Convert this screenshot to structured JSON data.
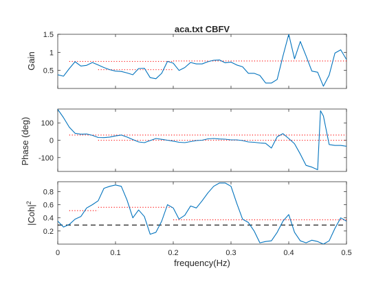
{
  "figure": {
    "title": "aca.txt CBFV",
    "xlabel": "frequency(Hz)",
    "background": "#ffffff",
    "axes_color": "#262626",
    "series_color": "#0072bd",
    "reference_color": "#ff0000",
    "threshold_color": "#000000"
  },
  "chart_data": [
    {
      "type": "line",
      "name": "gain",
      "ylabel": "Gain",
      "xlim": [
        0,
        0.5
      ],
      "ylim": [
        0,
        1.5
      ],
      "yticks": [
        0.5,
        1,
        1.5
      ],
      "ytick_labels": [
        "0.5",
        "1",
        "1.5"
      ],
      "xticks": [
        0,
        0.1,
        0.2,
        0.3,
        0.4,
        0.5
      ],
      "show_xtick_labels": false,
      "grid": false,
      "x": [
        0,
        0.01,
        0.02,
        0.03,
        0.04,
        0.05,
        0.06,
        0.07,
        0.08,
        0.09,
        0.1,
        0.11,
        0.12,
        0.13,
        0.14,
        0.15,
        0.16,
        0.17,
        0.18,
        0.19,
        0.2,
        0.21,
        0.22,
        0.23,
        0.24,
        0.25,
        0.26,
        0.27,
        0.28,
        0.29,
        0.3,
        0.31,
        0.32,
        0.33,
        0.34,
        0.35,
        0.36,
        0.37,
        0.38,
        0.39,
        0.4,
        0.41,
        0.42,
        0.43,
        0.44,
        0.45,
        0.46,
        0.47,
        0.48,
        0.49,
        0.5
      ],
      "y": [
        0.38,
        0.34,
        0.55,
        0.74,
        0.62,
        0.64,
        0.72,
        0.65,
        0.58,
        0.52,
        0.48,
        0.47,
        0.43,
        0.38,
        0.55,
        0.56,
        0.3,
        0.27,
        0.42,
        0.75,
        0.7,
        0.5,
        0.58,
        0.72,
        0.68,
        0.68,
        0.74,
        0.78,
        0.79,
        0.71,
        0.73,
        0.65,
        0.6,
        0.42,
        0.42,
        0.36,
        0.15,
        0.15,
        0.25,
        0.9,
        1.5,
        0.82,
        1.3,
        0.9,
        0.48,
        0.45,
        0.06,
        0.37,
        0.98,
        1.07,
        0.8
      ],
      "reference_lines": [
        {
          "x_start": 0.02,
          "x_end": 0.2,
          "y": 0.75
        },
        {
          "x_start": 0.07,
          "x_end": 0.2,
          "y": 0.52
        },
        {
          "x_start": 0.2,
          "x_end": 0.5,
          "y": 0.76
        }
      ]
    },
    {
      "type": "line",
      "name": "phase",
      "ylabel": "Phase (deg)",
      "xlim": [
        0,
        0.5
      ],
      "ylim": [
        -180,
        180
      ],
      "yticks": [
        -100,
        0,
        100
      ],
      "ytick_labels": [
        "-100",
        "0",
        "100"
      ],
      "xticks": [
        0,
        0.1,
        0.2,
        0.3,
        0.4,
        0.5
      ],
      "show_xtick_labels": false,
      "grid": false,
      "x": [
        0,
        0.01,
        0.02,
        0.03,
        0.04,
        0.05,
        0.06,
        0.07,
        0.08,
        0.09,
        0.1,
        0.11,
        0.12,
        0.13,
        0.14,
        0.15,
        0.16,
        0.17,
        0.18,
        0.19,
        0.2,
        0.21,
        0.22,
        0.23,
        0.24,
        0.25,
        0.26,
        0.27,
        0.28,
        0.29,
        0.3,
        0.31,
        0.32,
        0.33,
        0.34,
        0.35,
        0.36,
        0.37,
        0.38,
        0.39,
        0.4,
        0.41,
        0.42,
        0.43,
        0.44,
        0.45,
        0.455,
        0.46,
        0.47,
        0.48,
        0.49,
        0.5
      ],
      "y": [
        178,
        130,
        75,
        40,
        35,
        36,
        28,
        16,
        15,
        18,
        25,
        30,
        18,
        4,
        -10,
        -14,
        -2,
        10,
        5,
        0,
        -5,
        -12,
        -14,
        -8,
        -2,
        0,
        8,
        10,
        7,
        6,
        2,
        2,
        -2,
        -10,
        -12,
        -16,
        -18,
        -45,
        20,
        38,
        10,
        -20,
        -80,
        -145,
        -155,
        -170,
        170,
        140,
        -25,
        -30,
        -30,
        -35
      ],
      "reference_lines": [
        {
          "x_start": 0.02,
          "x_end": 0.5,
          "y": 30
        },
        {
          "x_start": 0.07,
          "x_end": 0.5,
          "y": 0
        }
      ]
    },
    {
      "type": "line",
      "name": "coherence",
      "ylabel": "|Coh|²",
      "ylabel_parts": [
        "|Coh|",
        "2"
      ],
      "xlim": [
        0,
        0.5
      ],
      "ylim": [
        0,
        0.95
      ],
      "yticks": [
        0.2,
        0.4,
        0.6,
        0.8
      ],
      "ytick_labels": [
        "0.2",
        "0.4",
        "0.6",
        "0.8"
      ],
      "xticks": [
        0,
        0.1,
        0.2,
        0.3,
        0.4,
        0.5
      ],
      "xtick_labels": [
        "0",
        "0.1",
        "0.2",
        "0.3",
        "0.4",
        "0.5"
      ],
      "show_xtick_labels": true,
      "grid": false,
      "x": [
        0,
        0.01,
        0.02,
        0.03,
        0.04,
        0.05,
        0.06,
        0.07,
        0.08,
        0.09,
        0.1,
        0.11,
        0.12,
        0.13,
        0.14,
        0.15,
        0.16,
        0.17,
        0.18,
        0.19,
        0.2,
        0.21,
        0.22,
        0.23,
        0.24,
        0.25,
        0.26,
        0.27,
        0.28,
        0.29,
        0.3,
        0.31,
        0.32,
        0.33,
        0.34,
        0.35,
        0.36,
        0.37,
        0.38,
        0.39,
        0.4,
        0.41,
        0.42,
        0.43,
        0.44,
        0.45,
        0.46,
        0.47,
        0.48,
        0.49,
        0.5
      ],
      "y": [
        0.35,
        0.26,
        0.3,
        0.38,
        0.42,
        0.55,
        0.6,
        0.66,
        0.85,
        0.88,
        0.9,
        0.88,
        0.67,
        0.4,
        0.52,
        0.42,
        0.15,
        0.18,
        0.35,
        0.6,
        0.55,
        0.38,
        0.44,
        0.58,
        0.55,
        0.66,
        0.78,
        0.88,
        0.93,
        0.93,
        0.88,
        0.62,
        0.38,
        0.33,
        0.2,
        0.02,
        0.04,
        0.05,
        0.18,
        0.35,
        0.45,
        0.18,
        0.05,
        0.02,
        0.06,
        0.04,
        0.0,
        0.05,
        0.24,
        0.4,
        0.35
      ],
      "reference_lines": [
        {
          "x_start": 0.02,
          "x_end": 0.07,
          "y": 0.51
        },
        {
          "x_start": 0.07,
          "x_end": 0.2,
          "y": 0.56
        },
        {
          "x_start": 0.2,
          "x_end": 0.5,
          "y": 0.37
        }
      ],
      "threshold": {
        "y": 0.29,
        "style": "dashed"
      }
    }
  ]
}
